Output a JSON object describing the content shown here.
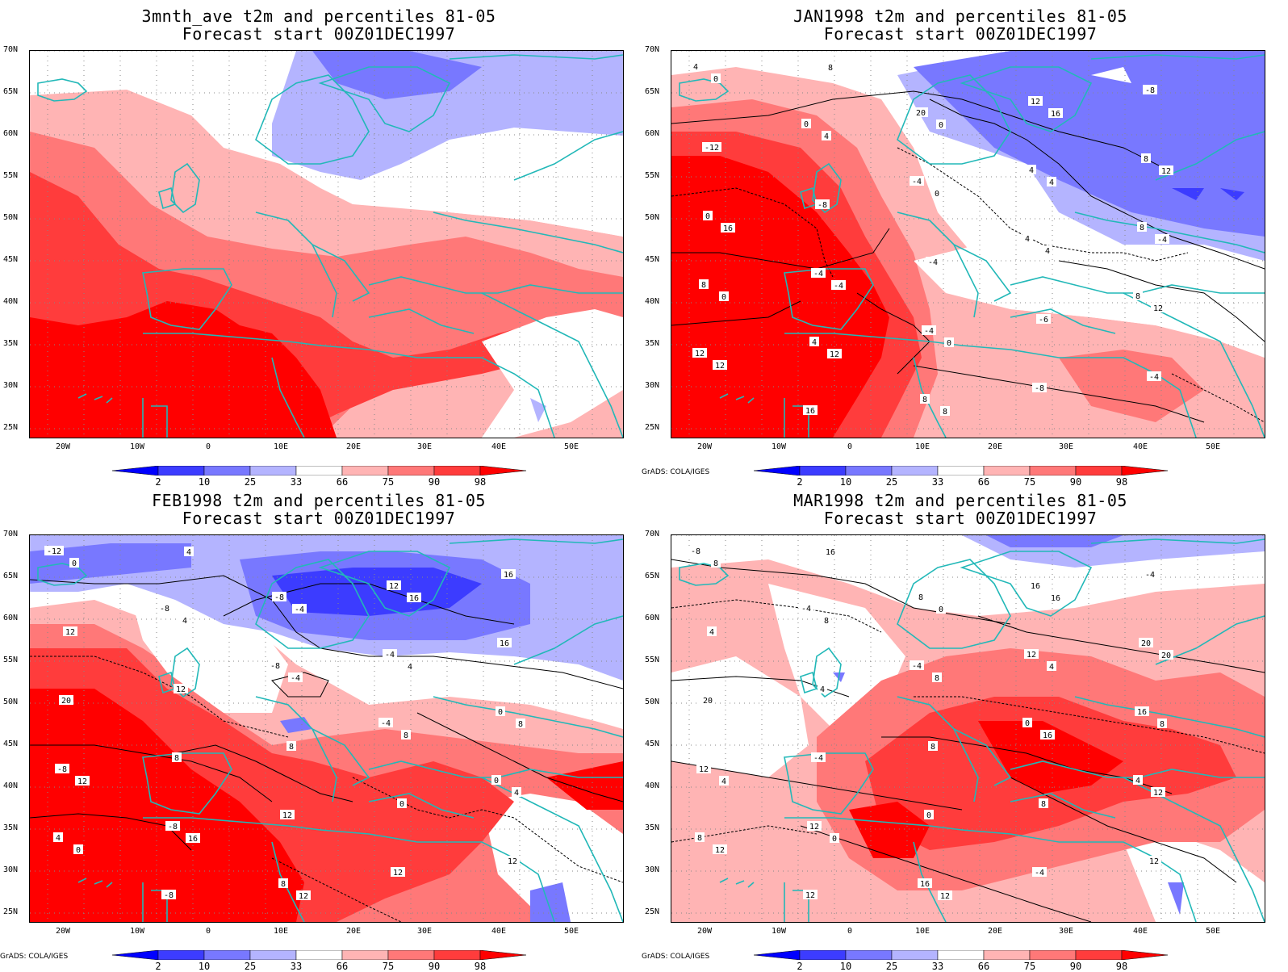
{
  "panels": [
    {
      "title1": "3mnth_ave t2m and percentiles 81-05",
      "title2": "Forecast start 00Z01DEC1997",
      "credit": "",
      "has_contours": false
    },
    {
      "title1": "JAN1998 t2m and percentiles 81-05",
      "title2": "Forecast start 00Z01DEC1997",
      "credit": "GrADS: COLA/IGES",
      "has_contours": true
    },
    {
      "title1": "FEB1998 t2m and percentiles 81-05",
      "title2": "Forecast start 00Z01DEC1997",
      "credit": "GrADS: COLA/IGES",
      "has_contours": true
    },
    {
      "title1": "MAR1998 t2m and percentiles 81-05",
      "title2": "Forecast start 00Z01DEC1997",
      "credit": "GrADS: COLA/IGES",
      "has_contours": true
    }
  ],
  "lat_labels": [
    "70N",
    "65N",
    "60N",
    "55N",
    "50N",
    "45N",
    "40N",
    "35N",
    "30N",
    "25N"
  ],
  "lon_labels": [
    "20W",
    "10W",
    "0",
    "10E",
    "20E",
    "30E",
    "40E",
    "50E"
  ],
  "colorbar": {
    "labels": [
      "2",
      "10",
      "25",
      "33",
      "66",
      "75",
      "90",
      "98"
    ],
    "colors": [
      "#0000ff",
      "#3c3cff",
      "#7878ff",
      "#b4b4ff",
      "#ffffff",
      "#ffb4b4",
      "#ff7878",
      "#ff3c3c",
      "#ff0000"
    ]
  },
  "colors": {
    "coast": "#22b8b8",
    "contour": "#000000",
    "grid": "#888888"
  },
  "contour_labels": [
    [],
    [
      "4",
      "0",
      "-4",
      "4",
      "8",
      "12",
      "16",
      "20",
      "4",
      "8",
      "8",
      "4",
      "8",
      "12",
      "8",
      "0",
      "-4",
      "-4",
      "-8",
      "-8",
      "-12",
      "-8",
      "-4",
      "-6",
      "-4",
      "0",
      "4",
      "0",
      "4",
      "12",
      "12",
      "8",
      "0",
      "4",
      "-4",
      "0",
      "12",
      "8",
      "16",
      "12",
      "16",
      "-4",
      "0"
    ],
    [
      "-12",
      "-8",
      "-8",
      "-4",
      "0",
      "4",
      "-8",
      "-8",
      "-4",
      "0",
      "-8",
      "-8",
      "8",
      "12",
      "16",
      "20",
      "8",
      "12",
      "12",
      "16",
      "12",
      "12",
      "8",
      "0",
      "12",
      "0",
      "4",
      "-4",
      "8",
      "4",
      "0",
      "4",
      "-4",
      "4",
      "8",
      "12",
      "16",
      "12",
      "16"
    ],
    [
      "-8",
      "-4",
      "-4",
      "0",
      "4",
      "8",
      "12",
      "8",
      "12",
      "16",
      "12",
      "12",
      "16",
      "16",
      "20",
      "20",
      "-4",
      "0",
      "-4",
      "-4",
      "4",
      "4",
      "8",
      "8",
      "12",
      "8",
      "8",
      "8",
      "16",
      "12",
      "12",
      "16",
      "0",
      "4",
      "8",
      "4",
      "0",
      "12",
      "16",
      "20"
    ]
  ]
}
